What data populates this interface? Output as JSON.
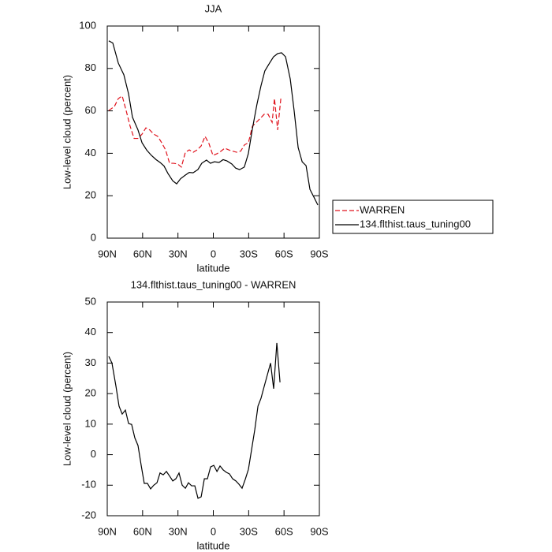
{
  "chart_data": [
    {
      "type": "line",
      "title": "JJA",
      "ylabel": "Low-level cloud (percent)",
      "xlabel": "latitude",
      "xlim": [
        90,
        -90
      ],
      "xticks": [
        {
          "value": 90,
          "label": "90N"
        },
        {
          "value": 60,
          "label": "60N"
        },
        {
          "value": 30,
          "label": "30N"
        },
        0,
        {
          "value": -30,
          "label": "30S"
        },
        {
          "value": -60,
          "label": "60S"
        },
        {
          "value": -90,
          "label": "90S"
        }
      ],
      "ylim": [
        0,
        100
      ],
      "yticks": [
        0,
        20,
        40,
        60,
        80,
        100
      ],
      "legend": "right",
      "series": [
        {
          "name": "WARREN",
          "color": "#e0141e",
          "linestyle": "dashed",
          "x": [
            88.7,
            84,
            80.6,
            77.3,
            73.9,
            70.6,
            67.2,
            63.9,
            60.5,
            57.2,
            53.9,
            50.5,
            47.2,
            43.8,
            40.5,
            37.1,
            33.8,
            30.4,
            27.1,
            23.7,
            20.4,
            17,
            13.7,
            10.3,
            7,
            3.7,
            0.3,
            -3.1,
            -6.5,
            -9.7,
            -13.1,
            -16.4,
            -19.8,
            -23.2,
            -26.5,
            -29.8,
            -33.2,
            -36.5,
            -39.9,
            -43.2,
            -46.5,
            -49.9,
            -51.9,
            -54.6,
            -57.3
          ],
          "values": [
            60.2,
            62,
            65.8,
            67,
            60,
            52.8,
            47,
            47,
            49,
            52,
            51,
            49,
            48,
            45,
            41.6,
            35.3,
            35.3,
            35,
            33.5,
            40.5,
            41.6,
            40.5,
            41.6,
            43.5,
            48,
            44.6,
            39,
            39.8,
            41,
            42.4,
            41.6,
            41,
            40.5,
            41,
            44,
            45,
            52.8,
            54.6,
            56.5,
            58.4,
            58.4,
            54.6,
            65.8,
            51,
            65.8
          ]
        },
        {
          "name": "134.flthist.taus_tuning00",
          "color": "#000000",
          "linestyle": "solid",
          "x": [
            88.7,
            85.3,
            80.6,
            75.9,
            71.9,
            68.6,
            63.9,
            60.5,
            56.5,
            52.5,
            48.5,
            45.2,
            41.8,
            38.5,
            34.4,
            31.1,
            27.8,
            23.8,
            20.4,
            17.2,
            13.1,
            9.8,
            5.8,
            2.4,
            -0.9,
            -4.9,
            -8.3,
            -11.6,
            -15.6,
            -19,
            -22.3,
            -26.3,
            -29.7,
            -33,
            -37,
            -40.4,
            -43.7,
            -47.7,
            -51.1,
            -54.6,
            -57.9,
            -61.3,
            -65.3,
            -68.6,
            -72,
            -75.4,
            -78.7,
            -82,
            -85.4,
            -88.7
          ],
          "values": [
            93,
            92,
            82.5,
            77,
            68,
            57,
            51,
            45,
            41.5,
            39,
            37,
            35.7,
            34,
            30.5,
            27,
            25.6,
            28,
            29.7,
            31,
            30.8,
            32.3,
            35.3,
            36.8,
            35.3,
            36,
            35.7,
            37,
            36.4,
            35,
            33,
            32.3,
            33.5,
            39.8,
            51,
            63,
            71.7,
            78.8,
            82.5,
            85.5,
            87,
            87.4,
            85.5,
            75,
            60,
            42.7,
            36,
            34.2,
            23,
            19.3,
            15.6
          ]
        }
      ]
    },
    {
      "type": "line",
      "title": "134.flthist.taus_tuning00 - WARREN",
      "ylabel": "Low-level cloud (percent)",
      "xlabel": "latitude",
      "xlim": [
        90,
        -90
      ],
      "xticks": [
        {
          "value": 90,
          "label": "90N"
        },
        {
          "value": 60,
          "label": "60N"
        },
        {
          "value": 30,
          "label": "30N"
        },
        0,
        {
          "value": -30,
          "label": "30S"
        },
        {
          "value": -60,
          "label": "60S"
        },
        {
          "value": -90,
          "label": "90S"
        }
      ],
      "ylim": [
        -20,
        50
      ],
      "yticks": [
        -20,
        -10,
        0,
        10,
        20,
        30,
        40,
        50
      ],
      "series": [
        {
          "color": "#000000",
          "linestyle": "solid",
          "x": [
            88.7,
            86,
            82.6,
            80,
            77.3,
            74.6,
            71.9,
            69.3,
            66.6,
            63.9,
            61.2,
            58.6,
            55.9,
            53.2,
            50.5,
            47.8,
            45.2,
            42.5,
            39.8,
            37.1,
            34.4,
            31.8,
            29.1,
            26.4,
            23.7,
            21.1,
            18.4,
            15.7,
            13,
            10.3,
            7.6,
            5,
            2.3,
            -0.4,
            -3.1,
            -5.7,
            -8.4,
            -11.1,
            -13.7,
            -16.4,
            -19.1,
            -21.8,
            -24.4,
            -27.1,
            -29.8,
            -32.5,
            -35.2,
            -37.9,
            -40.5,
            -43.2,
            -45.9,
            -48.6,
            -51.2,
            -53.9,
            -56.6
          ],
          "values": [
            32.2,
            30,
            22.4,
            15.9,
            13.3,
            14.6,
            10.2,
            9.9,
            5.5,
            3,
            -3.5,
            -9.4,
            -9.4,
            -11.2,
            -10,
            -9.2,
            -6,
            -6.6,
            -5.5,
            -7,
            -8.6,
            -7.9,
            -6,
            -10,
            -11,
            -9.2,
            -10.2,
            -10.2,
            -14.3,
            -13.8,
            -7.9,
            -7.9,
            -4,
            -3.5,
            -5.5,
            -3.7,
            -5,
            -5.8,
            -6.3,
            -7.9,
            -8.6,
            -9.7,
            -11,
            -8.1,
            -4.8,
            1.7,
            8.2,
            15.9,
            18.5,
            22.4,
            26.2,
            30,
            21.6,
            36.6,
            23.7
          ]
        }
      ]
    }
  ]
}
